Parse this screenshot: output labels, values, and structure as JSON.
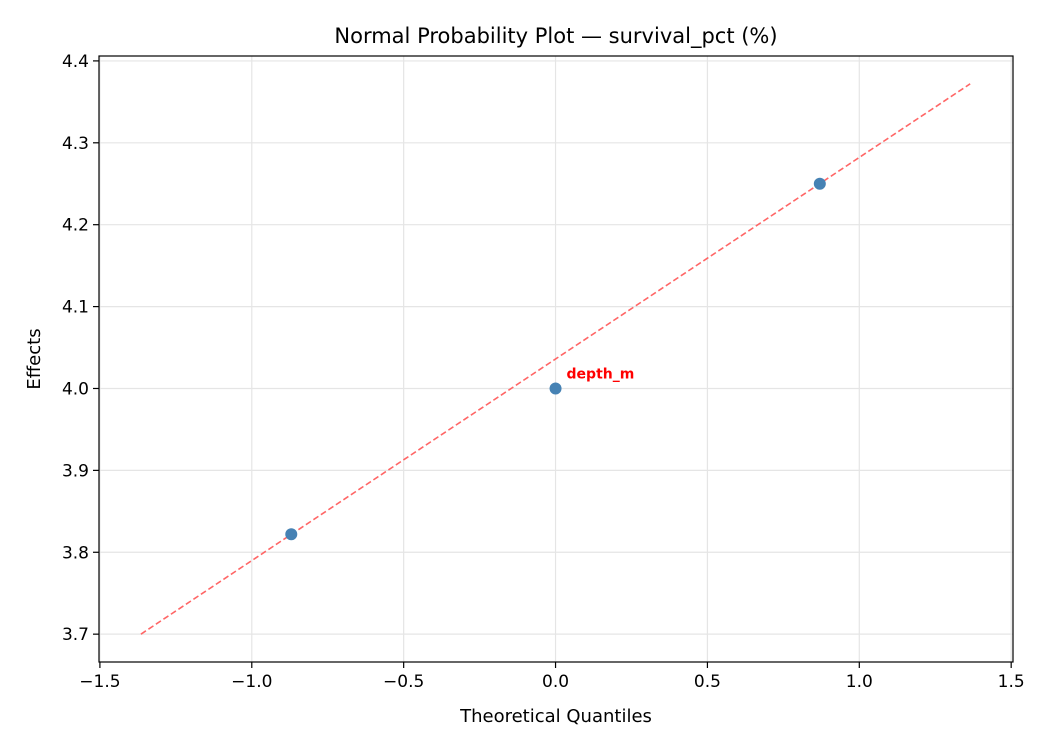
{
  "chart_data": {
    "type": "scatter",
    "title": "Normal Probability Plot — survival_pct (%)",
    "xlabel": "Theoretical Quantiles",
    "ylabel": "Effects",
    "xlim": [
      -1.503,
      1.506
    ],
    "ylim": [
      3.666,
      4.406
    ],
    "xticks": [
      -1.5,
      -1.0,
      -0.5,
      0.0,
      0.5,
      1.0,
      1.5
    ],
    "xtick_labels": [
      "−1.5",
      "−1.0",
      "−0.5",
      "0.0",
      "0.5",
      "1.0",
      "1.5"
    ],
    "yticks": [
      3.7,
      3.8,
      3.9,
      4.0,
      4.1,
      4.2,
      4.3,
      4.4
    ],
    "ytick_labels": [
      "3.7",
      "3.8",
      "3.9",
      "4.0",
      "4.1",
      "4.2",
      "4.3",
      "4.4"
    ],
    "grid": true,
    "points": [
      {
        "x": -0.87,
        "y": 3.822
      },
      {
        "x": 0.0,
        "y": 4.0,
        "label": "depth_m"
      },
      {
        "x": 0.87,
        "y": 4.25
      }
    ],
    "reference_line": {
      "x": [
        -1.365,
        1.365
      ],
      "y": [
        3.7,
        4.372
      ],
      "style": "dashed"
    },
    "colors": {
      "points": "#4682b4",
      "line": "#ff6666",
      "annotation": "#ff0000",
      "grid": "#e5e5e5"
    }
  }
}
